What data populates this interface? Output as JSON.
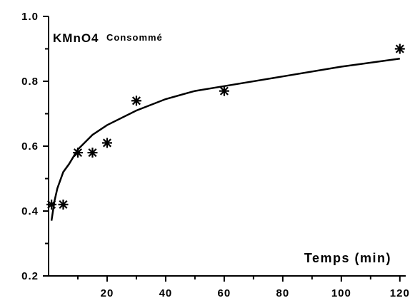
{
  "chart_data": {
    "type": "scatter",
    "title": "",
    "annotation": {
      "main": "KMnO4",
      "sub": "Consommé"
    },
    "xlabel": "Temps (min)",
    "ylabel": "",
    "xlim": [
      0,
      122
    ],
    "ylim": [
      0.2,
      1.0
    ],
    "x_ticks": [
      20,
      40,
      60,
      80,
      100,
      120
    ],
    "y_ticks": [
      0.2,
      0.4,
      0.6,
      0.8,
      1.0
    ],
    "y_tick_labels": [
      "0.2",
      "0.4",
      "0.6",
      "0.8",
      "1.0"
    ],
    "x_tick_labels": [
      "20",
      "40",
      "60",
      "80",
      "100",
      "120"
    ],
    "grid": false,
    "series": [
      {
        "marker": "asterisk",
        "x": [
          1,
          5,
          10,
          15,
          20,
          30,
          60,
          120
        ],
        "y": [
          0.42,
          0.42,
          0.58,
          0.58,
          0.61,
          0.74,
          0.77,
          0.9
        ]
      },
      {
        "style": "line",
        "curve": "fitted",
        "x": [
          1,
          2,
          3,
          5,
          7,
          10,
          15,
          20,
          30,
          40,
          50,
          60,
          80,
          100,
          120
        ],
        "y": [
          0.37,
          0.43,
          0.47,
          0.52,
          0.545,
          0.59,
          0.635,
          0.665,
          0.71,
          0.745,
          0.77,
          0.785,
          0.815,
          0.845,
          0.87
        ]
      }
    ]
  }
}
